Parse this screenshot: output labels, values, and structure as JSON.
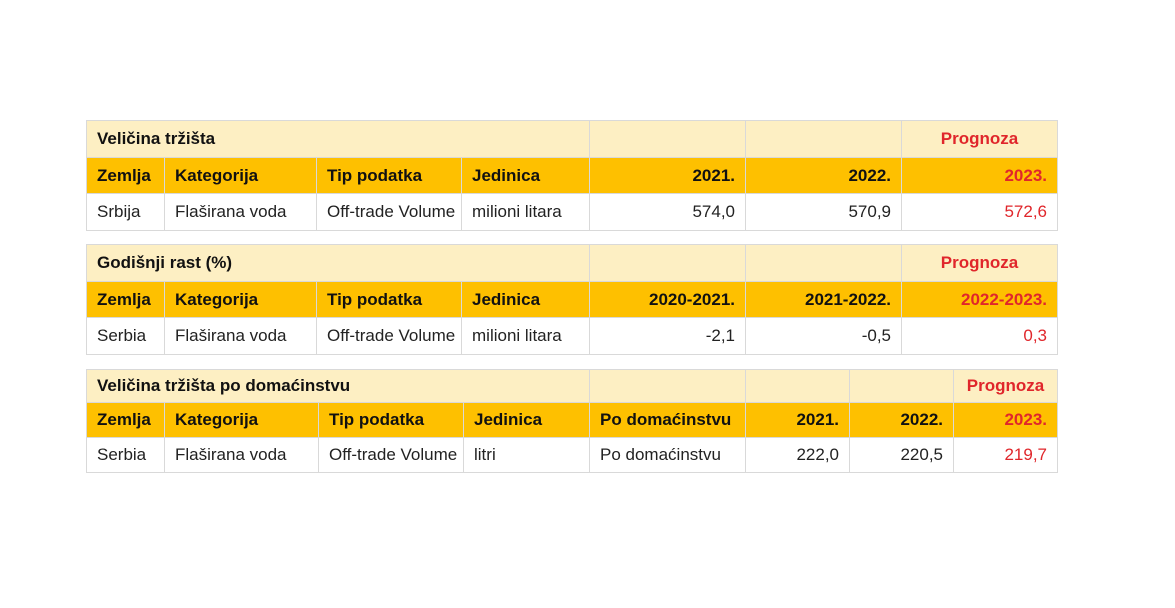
{
  "table1": {
    "title": "Veličina tržišta",
    "prognoza": "Prognoza",
    "headers": [
      "Zemlja",
      "Kategorija",
      "Tip podatka",
      "Jedinica",
      "2021.",
      "2022.",
      "2023."
    ],
    "row": [
      "Srbija",
      "Flaširana voda",
      "Off-trade Volume",
      "milioni litara",
      "574,0",
      "570,9",
      "572,6"
    ]
  },
  "table2": {
    "title": "Godišnji rast (%)",
    "prognoza": "Prognoza",
    "headers": [
      "Zemlja",
      "Kategorija",
      "Tip podatka",
      "Jedinica",
      "2020-2021.",
      "2021-2022.",
      "2022-2023."
    ],
    "row": [
      "Serbia",
      "Flaširana voda",
      "Off-trade Volume",
      "milioni litara",
      "-2,1",
      "-0,5",
      "0,3"
    ]
  },
  "table3": {
    "title": "Veličina tržišta po domaćinstvu",
    "prognoza": "Prognoza",
    "headers": [
      "Zemlja",
      "Kategorija",
      "Tip podatka",
      "Jedinica",
      "Po domaćinstvu",
      "2021.",
      "2022.",
      "2023."
    ],
    "row": [
      "Serbia",
      "Flaširana voda",
      "Off-trade Volume",
      "litri",
      "Po domaćinstvu",
      "222,0",
      "220,5",
      "219,7"
    ]
  },
  "colors": {
    "header": "#fec000",
    "title_band": "#fdefc3",
    "forecast": "#e0262b"
  }
}
